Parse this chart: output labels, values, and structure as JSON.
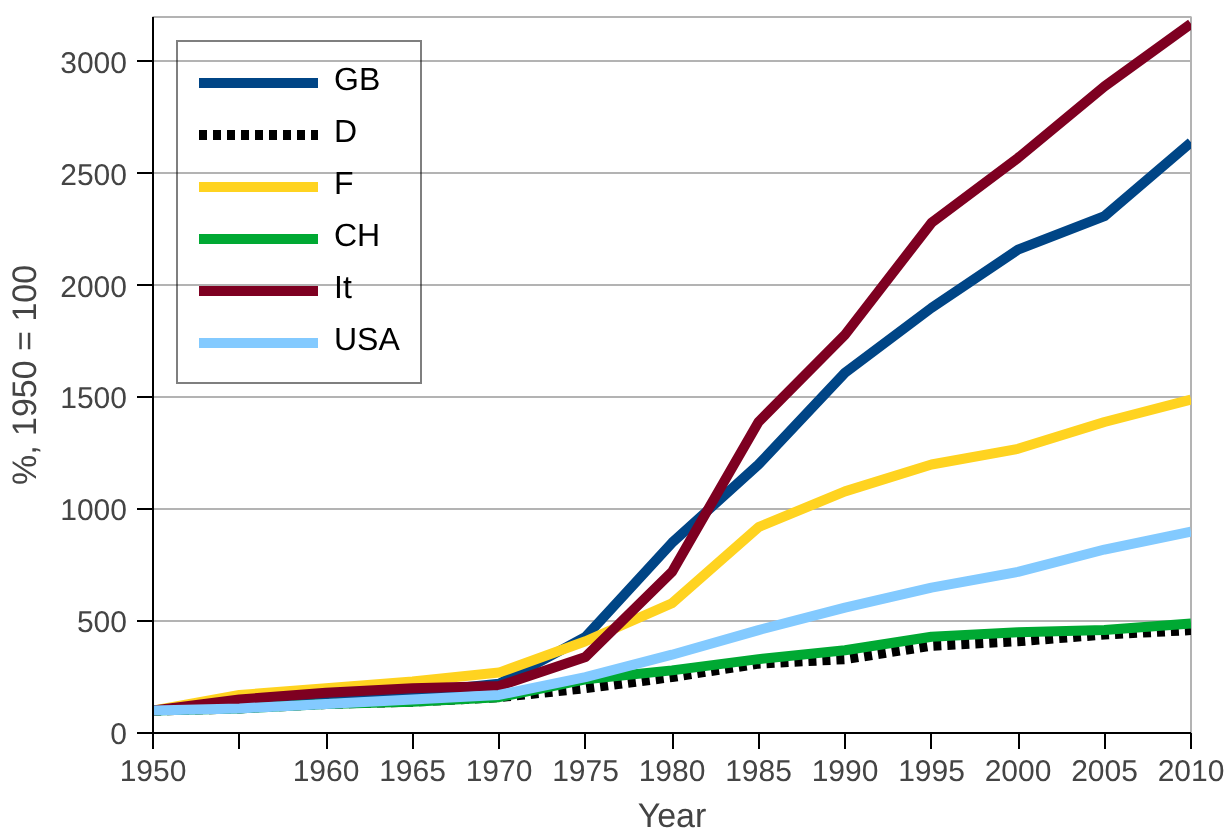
{
  "chart_data": {
    "type": "line",
    "xlabel": "Year",
    "ylabel": "%, 1950 = 100",
    "x": [
      1950,
      1955,
      1960,
      1965,
      1970,
      1975,
      1980,
      1985,
      1990,
      1995,
      2000,
      2005,
      2010
    ],
    "xlim": [
      1950,
      2010
    ],
    "xticks": [
      1950,
      {
        "value": 1955,
        "label": null
      },
      1960,
      1965,
      1970,
      1975,
      1980,
      1985,
      1990,
      1995,
      2000,
      2005,
      2010
    ],
    "ylim": [
      0,
      3200
    ],
    "yticks": [
      0,
      500,
      1000,
      1500,
      2000,
      2500,
      3000
    ],
    "grid": "y",
    "legend": "top left",
    "line_style": "solid",
    "series": [
      {
        "name": "GB",
        "color": "#004586",
        "values": [
          100,
          120,
          150,
          180,
          220,
          430,
          850,
          1200,
          1610,
          1900,
          2160,
          2310,
          2640
        ]
      },
      {
        "name": "D",
        "color": "#000000",
        "line_style": "dashed",
        "values": [
          100,
          110,
          130,
          140,
          160,
          200,
          250,
          310,
          330,
          390,
          410,
          440,
          460
        ]
      },
      {
        "name": "F",
        "color": "#ffd320",
        "values": [
          100,
          170,
          200,
          230,
          270,
          410,
          580,
          920,
          1080,
          1200,
          1270,
          1390,
          1490
        ]
      },
      {
        "name": "CH",
        "color": "#00a933",
        "values": [
          100,
          110,
          130,
          140,
          160,
          240,
          280,
          330,
          370,
          430,
          450,
          460,
          490
        ]
      },
      {
        "name": "It",
        "color": "#7e0021",
        "values": [
          100,
          150,
          180,
          200,
          210,
          340,
          720,
          1390,
          1780,
          2280,
          2570,
          2890,
          3170
        ]
      },
      {
        "name": "USA",
        "color": "#83caff",
        "values": [
          100,
          110,
          130,
          150,
          170,
          250,
          350,
          460,
          560,
          650,
          720,
          820,
          900
        ]
      }
    ]
  }
}
